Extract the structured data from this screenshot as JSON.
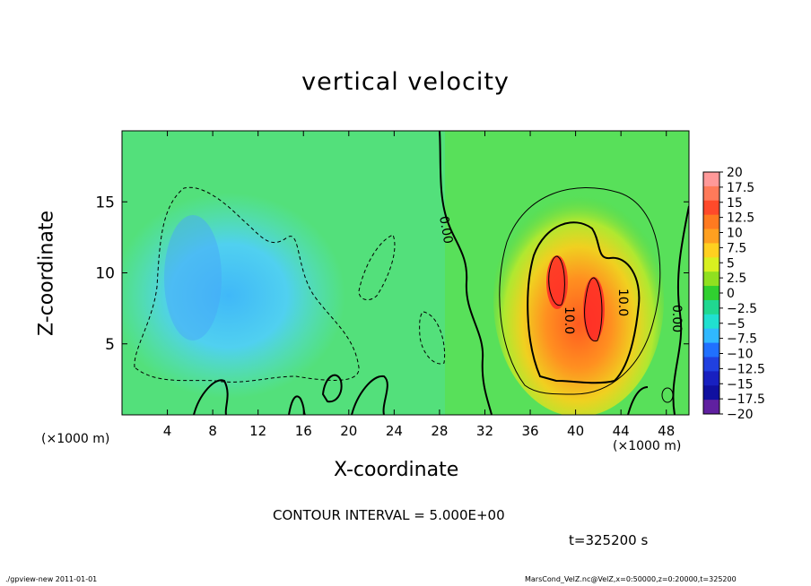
{
  "chart_data": {
    "type": "heatmap",
    "title": "vertical velocity",
    "xlabel": "X-coordinate",
    "ylabel": "Z-coordinate",
    "x_unit_label": "(×1000 m)",
    "xlim": [
      0,
      50
    ],
    "ylim": [
      0,
      20
    ],
    "x_ticks": [
      4,
      8,
      12,
      16,
      20,
      24,
      28,
      32,
      36,
      40,
      44,
      48
    ],
    "y_ticks": [
      5,
      10,
      15
    ],
    "colorbar": {
      "levels": [
        20,
        17.5,
        15,
        12.5,
        10,
        7.5,
        5,
        2.5,
        0,
        -2.5,
        -5,
        -7.5,
        -10,
        -12.5,
        -15,
        -17.5,
        -20
      ],
      "labels": [
        "20",
        "17.5",
        "15",
        "12.5",
        "10",
        "7.5",
        "5",
        "2.5",
        "0",
        "−2.5",
        "−5",
        "−7.5",
        "−10",
        "−12.5",
        "−15",
        "−17.5",
        "−20"
      ],
      "colors": [
        "#ff9999",
        "#ff7a5a",
        "#ff4a2a",
        "#ff7a20",
        "#ffa020",
        "#ffd020",
        "#d8f020",
        "#90e020",
        "#30d030",
        "#20d890",
        "#20e0d0",
        "#30b8ff",
        "#2070ff",
        "#2040e0",
        "#1820c0",
        "#1010a0",
        "#6020a0"
      ]
    },
    "contour_labels": [
      "0.00",
      "10.0",
      "10.0",
      "0.00"
    ],
    "contour_interval": "CONTOUR INTERVAL = 5.000E+00",
    "time_label": "t=325200 s",
    "features": [
      {
        "name": "downdraft",
        "x_center": 11,
        "z_center": 10,
        "w_min": -7.5
      },
      {
        "name": "updraft-core-1",
        "x_center": 38.5,
        "z_center": 9.5,
        "w_max": 17.5
      },
      {
        "name": "updraft-core-2",
        "x_center": 41.5,
        "z_center": 7.5,
        "w_max": 17.5
      }
    ],
    "legend_placement": "right",
    "grid": false
  },
  "footer": {
    "left": "./gpview-new   2011-01-01",
    "right": "MarsCond_VelZ.nc@VelZ,x=0:50000,z=0:20000,t=325200"
  }
}
